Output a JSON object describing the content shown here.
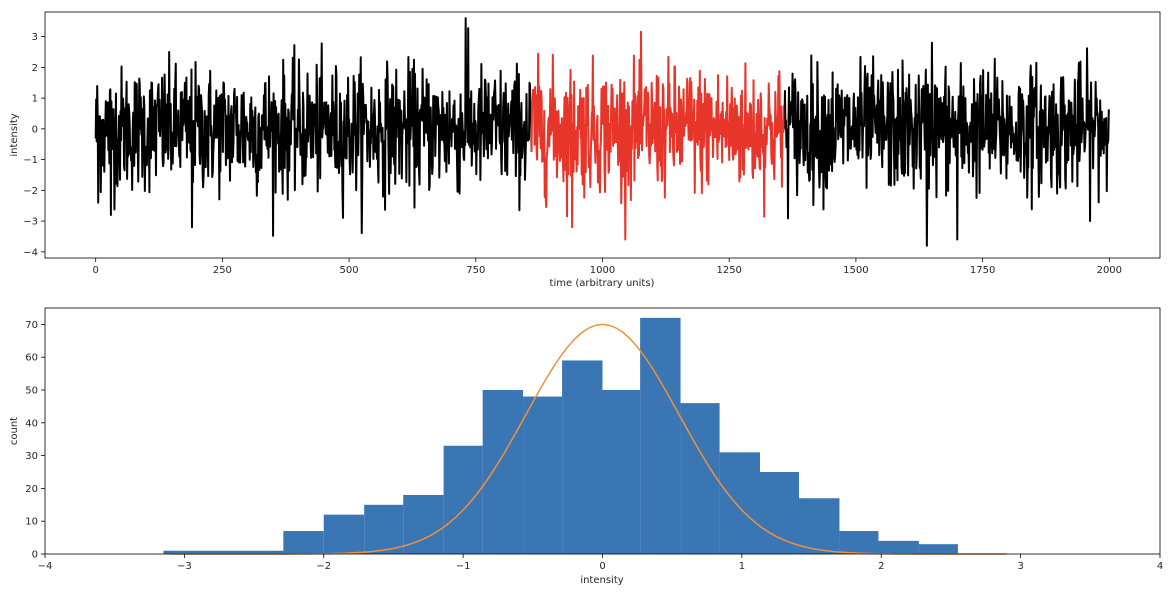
{
  "chart_data": [
    {
      "type": "line",
      "title": "",
      "xlabel": "time (arbitrary units)",
      "ylabel": "intensity",
      "xlim": [
        -100,
        2100
      ],
      "ylim": [
        -4.2,
        3.8
      ],
      "xticks": [
        0,
        250,
        500,
        750,
        1000,
        1250,
        1500,
        1750,
        2000
      ],
      "yticks": [
        -4,
        -3,
        -2,
        -1,
        0,
        1,
        2,
        3
      ],
      "grid": false,
      "n_points": 2000,
      "series": [
        {
          "segment": "baseline",
          "x_range": [
            0,
            860
          ],
          "color": "#000000",
          "std": 1.0
        },
        {
          "segment": "highlighted",
          "x_range": [
            860,
            1360
          ],
          "color": "#e8352a",
          "std": 1.0
        },
        {
          "segment": "baseline",
          "x_range": [
            1360,
            2000
          ],
          "color": "#000000",
          "std": 1.0
        }
      ],
      "notable_points": [
        {
          "x": 5,
          "y": -2.4
        },
        {
          "x": 30,
          "y": -2.8
        },
        {
          "x": 190,
          "y": -3.2
        },
        {
          "x": 730,
          "y": 3.6
        },
        {
          "x": 940,
          "y": -3.2
        },
        {
          "x": 1640,
          "y": -3.8
        },
        {
          "x": 1700,
          "y": -3.6
        },
        {
          "x": 1650,
          "y": 2.8
        }
      ]
    },
    {
      "type": "bar",
      "subtype": "histogram",
      "title": "",
      "xlabel": "intensity",
      "ylabel": "count",
      "xlim": [
        -4,
        4
      ],
      "ylim": [
        0,
        75
      ],
      "xticks": [
        -4,
        -3,
        -2,
        -1,
        0,
        1,
        2,
        3,
        4
      ],
      "yticks": [
        0,
        10,
        20,
        30,
        40,
        50,
        60,
        70
      ],
      "grid": false,
      "bar_color": "#3a76b3",
      "bins": [
        {
          "x0": -3.15,
          "x1": -2.29,
          "count": 1
        },
        {
          "x0": -2.29,
          "x1": -2.0,
          "count": 7
        },
        {
          "x0": -2.0,
          "x1": -1.71,
          "count": 12
        },
        {
          "x0": -1.71,
          "x1": -1.43,
          "count": 15
        },
        {
          "x0": -1.43,
          "x1": -1.14,
          "count": 18
        },
        {
          "x0": -1.14,
          "x1": -0.86,
          "count": 33
        },
        {
          "x0": -0.86,
          "x1": -0.57,
          "count": 50
        },
        {
          "x0": -0.57,
          "x1": -0.29,
          "count": 48
        },
        {
          "x0": -0.29,
          "x1": 0.0,
          "count": 59
        },
        {
          "x0": 0.0,
          "x1": 0.27,
          "count": 50
        },
        {
          "x0": 0.27,
          "x1": 0.56,
          "count": 72
        },
        {
          "x0": 0.56,
          "x1": 0.84,
          "count": 46
        },
        {
          "x0": 0.84,
          "x1": 1.13,
          "count": 31
        },
        {
          "x0": 1.13,
          "x1": 1.41,
          "count": 25
        },
        {
          "x0": 1.41,
          "x1": 1.7,
          "count": 17
        },
        {
          "x0": 1.7,
          "x1": 1.98,
          "count": 7
        },
        {
          "x0": 1.98,
          "x1": 2.27,
          "count": 4
        },
        {
          "x0": 2.27,
          "x1": 2.55,
          "count": 3
        }
      ],
      "fit_curve": {
        "type": "gaussian",
        "color": "#f0913a",
        "mean": 0.0,
        "sigma": 0.55,
        "peak": 70,
        "x_range": [
          -3.1,
          2.9
        ]
      }
    }
  ]
}
